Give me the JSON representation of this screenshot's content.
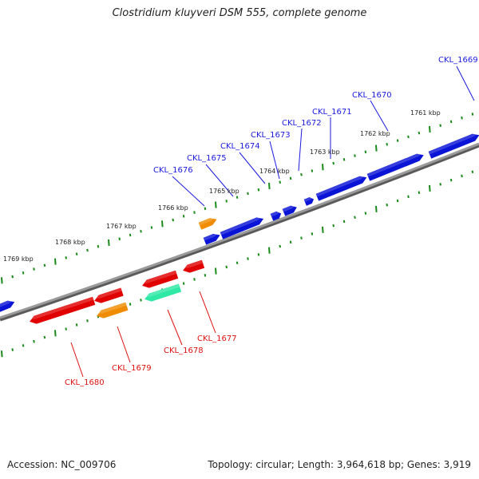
{
  "title": "Clostridium kluyveri DSM 555, complete genome",
  "footer": {
    "accession": "Accession: NC_009706",
    "summary": "Topology: circular; Length: 3,964,618 bp; Genes: 3,919"
  },
  "colors": {
    "forward_gene": "#0a14d6",
    "reverse_gene": "#e00000",
    "orange_gene": "#f08c00",
    "teal_gene": "#2ee8a6",
    "backbone": "#8a8a8a",
    "tick": "#1a8a1a",
    "forward_label": "#1a1ae0",
    "reverse_label": "#e01010"
  },
  "kbp_labels": [
    "1761 kbp",
    "1762 kbp",
    "1763 kbp",
    "1764 kbp",
    "1765 kbp",
    "1766 kbp",
    "1767 kbp",
    "1768 kbp",
    "1769 kbp"
  ],
  "forward_gene_labels": [
    "CKL_1669",
    "CKL_1670",
    "CKL_1671",
    "CKL_1672",
    "CKL_1673",
    "CKL_1674",
    "CKL_1675",
    "CKL_1676"
  ],
  "reverse_gene_labels": [
    "CKL_1677",
    "CKL_1678",
    "CKL_1679",
    "CKL_1680"
  ]
}
